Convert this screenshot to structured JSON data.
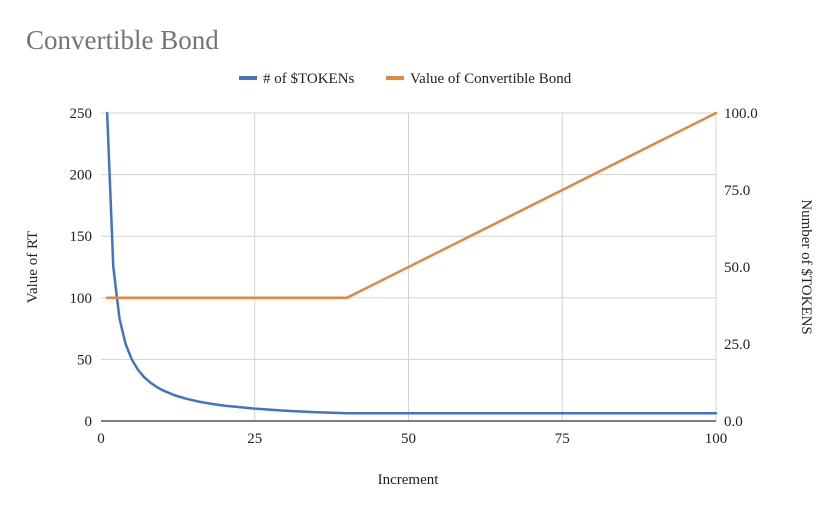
{
  "chart_data": {
    "type": "line",
    "title": "Convertible Bond",
    "xlabel": "Increment",
    "ylabel_left": "Value of RT",
    "ylabel_right": "Number of $TOKENS",
    "xlim": [
      0,
      100
    ],
    "ylim_left": [
      0,
      250
    ],
    "ylim_right": [
      0,
      100
    ],
    "x_ticks": [
      "0",
      "25",
      "50",
      "75",
      "100"
    ],
    "y_ticks_left": [
      "0",
      "50",
      "100",
      "150",
      "200",
      "250"
    ],
    "y_ticks_right": [
      "0.0",
      "25.0",
      "50.0",
      "75.0",
      "100.0"
    ],
    "grid": true,
    "legend_position": "top",
    "series": [
      {
        "name": "# of $TOKENs",
        "axis": "left",
        "color": "#4472c4",
        "x": [
          1,
          2,
          3,
          4,
          5,
          6,
          7,
          8,
          9,
          10,
          12,
          14,
          16,
          18,
          20,
          25,
          30,
          35,
          40,
          45,
          50,
          60,
          70,
          80,
          90,
          100
        ],
        "y": [
          250,
          125,
          83.3,
          62.5,
          50,
          41.7,
          35.7,
          31.3,
          27.8,
          25,
          20.8,
          17.9,
          15.6,
          13.9,
          12.5,
          10,
          8.3,
          7.1,
          6.25,
          6.25,
          6.25,
          6.25,
          6.25,
          6.25,
          6.25,
          6.25
        ]
      },
      {
        "name": "Value of Convertible Bond",
        "axis": "left",
        "color": "#e0893f",
        "x": [
          1,
          40,
          100
        ],
        "y": [
          100,
          100,
          250
        ]
      }
    ]
  }
}
